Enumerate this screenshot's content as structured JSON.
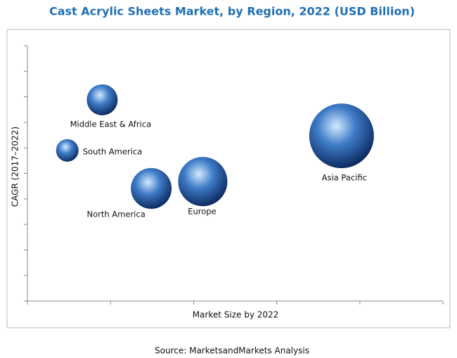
{
  "chart_data": {
    "type": "bubble",
    "title": "Cast Acrylic Sheets Market, by Region, 2022 (USD Billion)",
    "x_label": "Market Size by 2022",
    "y_label": "CAGR (2017–2022)",
    "source": "Source: MarketsandMarkets Analysis",
    "color": "#3f7cc8",
    "xlim": [
      0,
      5
    ],
    "xticks": [
      0,
      1,
      2,
      3,
      4,
      5
    ],
    "ylim": [
      0,
      10
    ],
    "yticks": [
      0,
      1,
      2,
      3,
      4,
      5,
      6,
      7,
      8,
      9,
      10
    ],
    "categories": [
      "Middle East & Africa",
      "South America",
      "North America",
      "Europe",
      "Asia Pacific"
    ],
    "x": [
      0.9,
      0.48,
      1.49,
      2.11,
      3.78
    ],
    "values": [
      7.88,
      5.9,
      4.41,
      4.68,
      6.47
    ],
    "sizes": [
      22,
      16,
      29,
      35,
      46
    ]
  }
}
